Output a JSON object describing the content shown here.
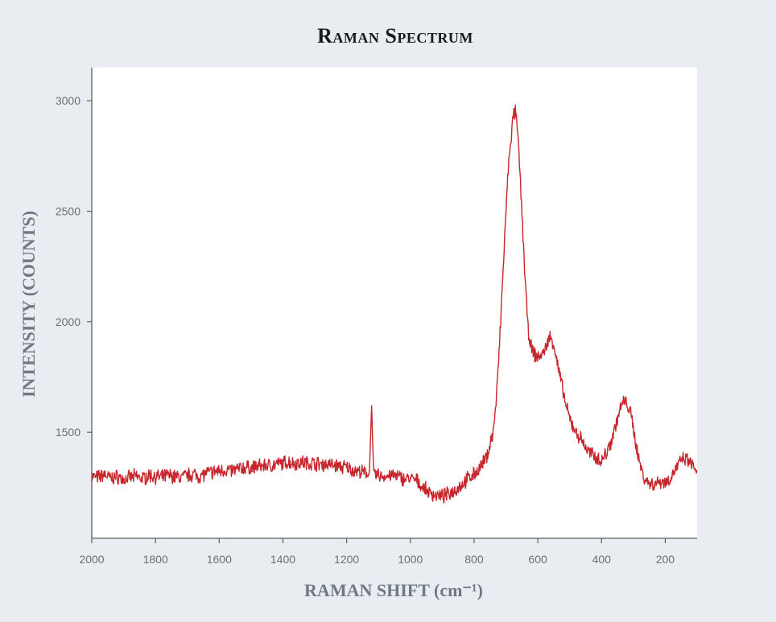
{
  "chart_data": {
    "type": "line",
    "title": "Raman Spectrum",
    "xlabel": "RAMAN SHIFT (cm⁻¹)",
    "ylabel": "INTENSITY (COUNTS)",
    "xlim": [
      2000,
      100
    ],
    "ylim": [
      1020,
      3150
    ],
    "x_reversed": true,
    "x_ticks": [
      2000,
      1800,
      1600,
      1400,
      1200,
      1000,
      800,
      600,
      400,
      200
    ],
    "y_ticks": [
      1500,
      2000,
      2500,
      3000
    ],
    "grid": false,
    "line_color": "#c8262d",
    "series": [
      {
        "x": [
          2000,
          1980,
          1960,
          1940,
          1920,
          1900,
          1880,
          1860,
          1840,
          1820,
          1800,
          1780,
          1760,
          1740,
          1720,
          1700,
          1680,
          1660,
          1640,
          1620,
          1600,
          1580,
          1560,
          1540,
          1520,
          1500,
          1480,
          1460,
          1440,
          1420,
          1400,
          1380,
          1360,
          1340,
          1320,
          1300,
          1280,
          1260,
          1240,
          1220,
          1200,
          1180,
          1160,
          1140,
          1130,
          1125,
          1122,
          1119,
          1115,
          1110,
          1100,
          1080,
          1060,
          1040,
          1020,
          1000,
          980,
          960,
          940,
          920,
          900,
          880,
          860,
          840,
          820,
          800,
          780,
          760,
          740,
          730,
          720,
          710,
          700,
          690,
          680,
          675,
          670,
          665,
          660,
          650,
          640,
          630,
          620,
          610,
          600,
          590,
          580,
          570,
          560,
          550,
          540,
          530,
          520,
          510,
          500,
          490,
          480,
          470,
          460,
          450,
          440,
          430,
          420,
          410,
          400,
          390,
          380,
          370,
          360,
          350,
          340,
          330,
          320,
          310,
          300,
          290,
          280,
          270,
          260,
          250,
          240,
          230,
          220,
          210,
          200,
          190,
          180,
          170,
          160,
          150,
          140,
          130,
          120,
          110,
          100
        ],
        "y": [
          1300,
          1295,
          1310,
          1290,
          1300,
          1285,
          1295,
          1300,
          1290,
          1305,
          1300,
          1295,
          1305,
          1300,
          1295,
          1305,
          1310,
          1300,
          1315,
          1320,
          1325,
          1330,
          1325,
          1335,
          1340,
          1340,
          1345,
          1350,
          1350,
          1355,
          1360,
          1365,
          1360,
          1365,
          1360,
          1360,
          1355,
          1355,
          1350,
          1345,
          1340,
          1330,
          1320,
          1315,
          1310,
          1450,
          1665,
          1450,
          1310,
          1305,
          1305,
          1300,
          1305,
          1300,
          1290,
          1290,
          1280,
          1250,
          1225,
          1215,
          1210,
          1220,
          1240,
          1260,
          1290,
          1310,
          1340,
          1390,
          1500,
          1650,
          1900,
          2200,
          2500,
          2750,
          2890,
          2940,
          2950,
          2880,
          2780,
          2500,
          2200,
          1950,
          1880,
          1850,
          1840,
          1850,
          1860,
          1910,
          1930,
          1900,
          1820,
          1750,
          1680,
          1610,
          1560,
          1530,
          1500,
          1480,
          1460,
          1430,
          1410,
          1400,
          1390,
          1380,
          1370,
          1395,
          1420,
          1460,
          1510,
          1560,
          1610,
          1640,
          1630,
          1590,
          1520,
          1430,
          1360,
          1310,
          1280,
          1270,
          1265,
          1270,
          1275,
          1280,
          1275,
          1280,
          1300,
          1330,
          1350,
          1370,
          1380,
          1370,
          1360,
          1340,
          1330
        ]
      }
    ]
  }
}
